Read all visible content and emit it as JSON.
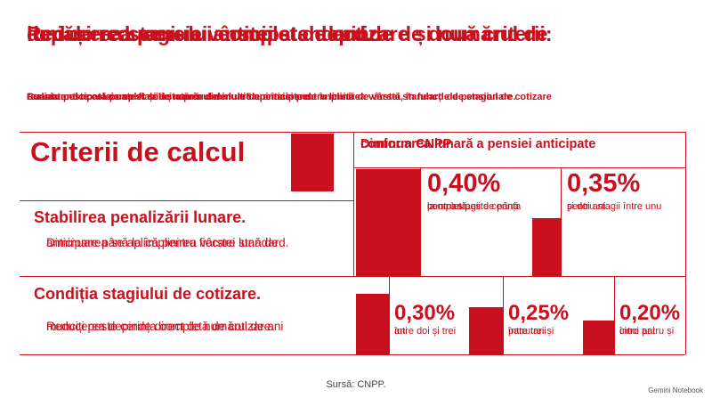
{
  "header": {
    "title": [
      "Reducerea pensiei anticipate depinde de două criterii:",
      "depășirea stagiului complet de cotizare și numărul de",
      "luni de reducere a vârstei standard."
    ],
    "subtitle": [
      "Pensia anticipată poate fi solicitată cu cel mult 5 ani înainte de împlinirea vârstei standard de pensionare.",
      "Cuantumul acesteia se stabilește prin diminuarea pensiei pentru limită de vârstă, în funcție de stagiul de cotizare",
      "realizat peste cel complet și de numărul de luni de anticipare."
    ]
  },
  "left": {
    "title": "Criterii de calcul",
    "sections": [
      {
        "heading": "Stabilirea penalizării lunare.",
        "text": [
          "Diminuarea se aplică pentru fiecare lună de",
          "anticipare până la împlinirea vârstei standard."
        ]
      },
      {
        "heading": "Condiția stagiului de cotizare.",
        "text": [
          "Reducerea depinde direct de numărul de ani",
          "munciți peste cerința completă de cotizare."
        ]
      }
    ]
  },
  "right": {
    "title": [
      "Diminuarea lunară a pensiei anticipate",
      "conform CNPP"
    ],
    "items": [
      {
        "value": "0,40%",
        "label": [
          "pentru stagii de până",
          "la un an peste cerința",
          "completă."
        ]
      },
      {
        "value": "0,35%",
        "label": [
          "pentru stagii între unu",
          "și doi ani."
        ]
      },
      {
        "value": "0,30%",
        "label": [
          "între doi și trei",
          "ani"
        ]
      },
      {
        "value": "0,25%",
        "label": [
          "între trei și",
          "patru ani"
        ]
      },
      {
        "value": "0,20%",
        "label": [
          "între patru și",
          "cinci ani"
        ]
      }
    ]
  },
  "source": "Sursă: CNPP.",
  "watermark": "Gemini Notebook"
}
